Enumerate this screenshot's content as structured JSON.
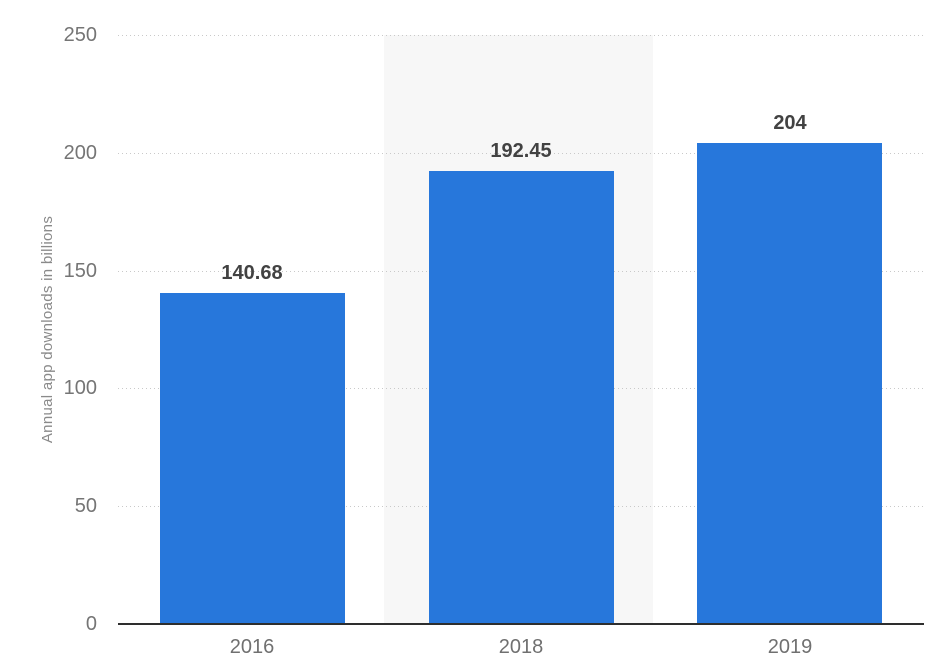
{
  "chart_data": {
    "type": "bar",
    "categories": [
      "2016",
      "2018",
      "2019"
    ],
    "values": [
      140.68,
      192.45,
      204
    ],
    "value_labels": [
      "140.68",
      "192.45",
      "204"
    ],
    "ylabel": "Annual app downloads in billions",
    "ylim": [
      0,
      250
    ],
    "yticks": [
      0,
      50,
      100,
      150,
      200,
      250
    ],
    "grid": "horizontal-dotted",
    "legend": "none",
    "highlighted_category_index": 1,
    "colors": {
      "bar": "#2777db",
      "highlight_band": "#f7f7f7",
      "gridline": "#c9c9c9",
      "axis_line": "#2e2e2e",
      "tick_label": "#757575",
      "x_label": "#707070",
      "data_label": "#424242",
      "axis_title": "#8a8a8a",
      "background": "#ffffff"
    }
  }
}
